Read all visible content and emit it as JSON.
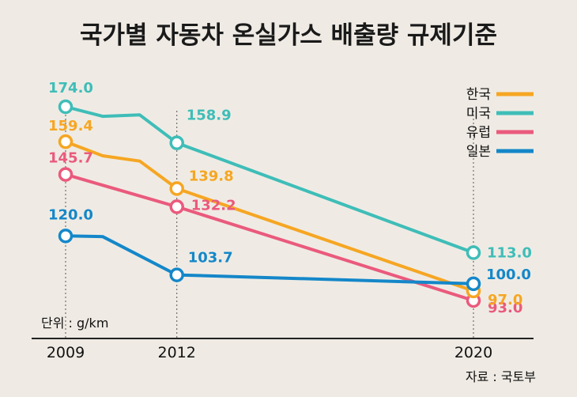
{
  "chart_data": {
    "type": "line",
    "title": "국가별 자동차 온실가스 배출량 규제기준",
    "unit_label": "단위 : g/km",
    "source": "자료 : 국토부",
    "x_ticks": [
      "2009",
      "2012",
      "2020"
    ],
    "x_range": [
      2009,
      2020
    ],
    "ylim": [
      85,
      180
    ],
    "grid": false,
    "legend_position": "top-right",
    "series": [
      {
        "name": "한국",
        "color": "#f6a623",
        "points": [
          [
            2009,
            159.4
          ],
          [
            2010,
            153.5
          ],
          [
            2011,
            151.3
          ],
          [
            2012,
            139.8
          ],
          [
            2020,
            97.0
          ]
        ],
        "labels": [
          {
            "x": 2009,
            "text": "159.4"
          },
          {
            "x": 2012,
            "text": "139.8"
          },
          {
            "x": 2020,
            "text": "97.0"
          }
        ]
      },
      {
        "name": "미국",
        "color": "#3fbdb8",
        "points": [
          [
            2009,
            174.0
          ],
          [
            2010,
            170.0
          ],
          [
            2011,
            170.6
          ],
          [
            2012,
            158.9
          ],
          [
            2020,
            113.0
          ]
        ],
        "labels": [
          {
            "x": 2009,
            "text": "174.0"
          },
          {
            "x": 2012,
            "text": "158.9"
          },
          {
            "x": 2020,
            "text": "113.0"
          }
        ]
      },
      {
        "name": "유럽",
        "color": "#ea5a7d",
        "points": [
          [
            2009,
            145.7
          ],
          [
            2012,
            132.2
          ],
          [
            2020,
            93.0
          ]
        ],
        "labels": [
          {
            "x": 2009,
            "text": "145.7"
          },
          {
            "x": 2012,
            "text": "132.2"
          },
          {
            "x": 2020,
            "text": "93.0"
          }
        ]
      },
      {
        "name": "일본",
        "color": "#1487c9",
        "points": [
          [
            2009,
            120.0
          ],
          [
            2010,
            119.7
          ],
          [
            2012,
            103.7
          ],
          [
            2020,
            100.0
          ]
        ],
        "labels": [
          {
            "x": 2009,
            "text": "120.0"
          },
          {
            "x": 2012,
            "text": "103.7"
          },
          {
            "x": 2020,
            "text": "100.0"
          }
        ]
      }
    ]
  }
}
